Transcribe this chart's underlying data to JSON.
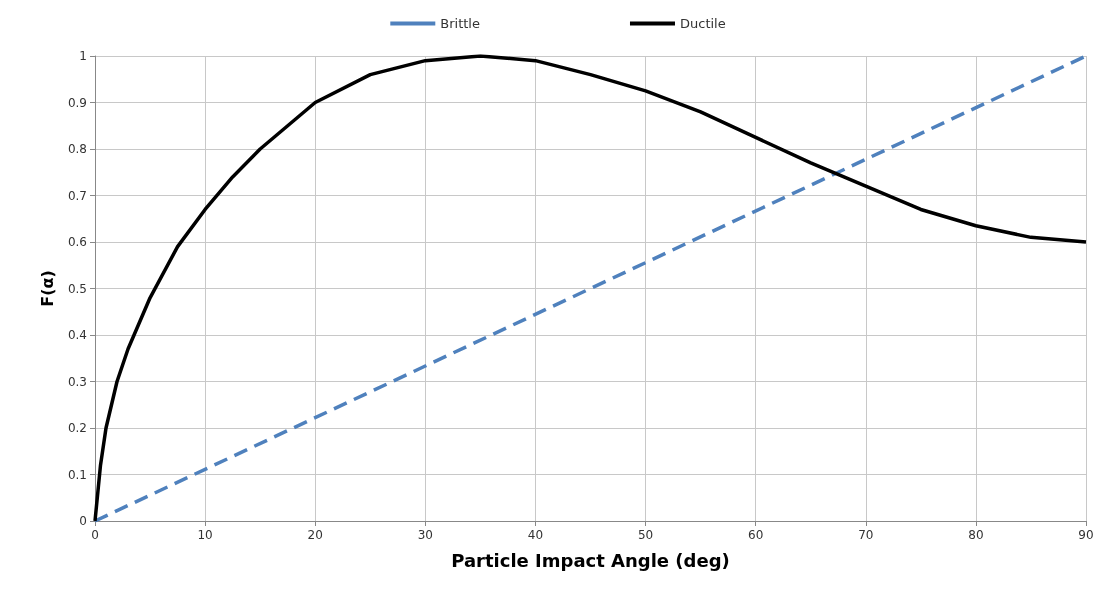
{
  "chart_data": {
    "type": "line",
    "xlabel": "Particle Impact Angle (deg)",
    "ylabel": "F(α)",
    "xlim": [
      0,
      90
    ],
    "xticks": [
      0,
      10,
      20,
      30,
      40,
      50,
      60,
      70,
      80,
      90
    ],
    "ylim": [
      0,
      1
    ],
    "yticks": [
      0,
      0.1,
      0.2,
      0.3,
      0.4,
      0.5,
      0.6,
      0.7,
      0.8,
      0.9,
      1
    ],
    "grid": true,
    "legend": "top",
    "marker": "none",
    "series": [
      {
        "name": "Brittle",
        "color": "#4f81bd",
        "line_style": "dashed",
        "x": [
          0,
          90
        ],
        "values": [
          0,
          1
        ]
      },
      {
        "name": "Ductile",
        "color": "#000000",
        "line_style": "solid",
        "x": [
          0,
          0.5,
          1,
          2,
          3,
          5,
          7.5,
          10,
          12.5,
          15,
          20,
          25,
          30,
          35,
          40,
          45,
          50,
          55,
          60,
          65,
          70,
          75,
          80,
          85,
          90
        ],
        "values": [
          0,
          0.12,
          0.2,
          0.3,
          0.37,
          0.48,
          0.59,
          0.67,
          0.74,
          0.8,
          0.9,
          0.96,
          0.99,
          1,
          0.99,
          0.96,
          0.925,
          0.88,
          0.825,
          0.77,
          0.72,
          0.67,
          0.635,
          0.61,
          0.6
        ]
      }
    ]
  }
}
